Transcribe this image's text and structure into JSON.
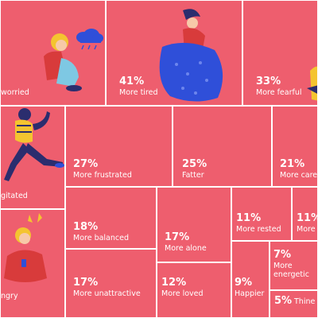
{
  "chart_data": {
    "type": "treemap",
    "tile_color": "#ee5e6e",
    "border_color": "#ffffff",
    "accent_colors": [
      "#2f4fd9",
      "#f4c430",
      "#f59bb0",
      "#2b2d6e"
    ],
    "items": [
      {
        "label": "worried",
        "value": null
      },
      {
        "label": "More tired",
        "value": 41,
        "value_label": "41%"
      },
      {
        "label": "More fearful",
        "value": 33,
        "value_label": "33%"
      },
      {
        "label": "gitated",
        "value": null
      },
      {
        "label": "More frustrated",
        "value": 27,
        "value_label": "27%"
      },
      {
        "label": "Fatter",
        "value": 25,
        "value_label": "25%"
      },
      {
        "label": "More care",
        "value": 21,
        "value_label": "21%"
      },
      {
        "label": "More balanced",
        "value": 18,
        "value_label": "18%"
      },
      {
        "label": "More alone",
        "value": 17,
        "value_label": "17%"
      },
      {
        "label": "More rested",
        "value": 11,
        "value_label": "11%"
      },
      {
        "label": "More",
        "value": 11,
        "value_label": "11%"
      },
      {
        "label": "ngry",
        "value": null
      },
      {
        "label": "More unattractive",
        "value": 17,
        "value_label": "17%"
      },
      {
        "label": "More loved",
        "value": 12,
        "value_label": "12%"
      },
      {
        "label": "Happier",
        "value": 9,
        "value_label": "9%"
      },
      {
        "label": "More energetic",
        "value": 7,
        "value_label": "7%"
      },
      {
        "label": "Thine",
        "value": 5,
        "value_label": "5%"
      }
    ]
  }
}
